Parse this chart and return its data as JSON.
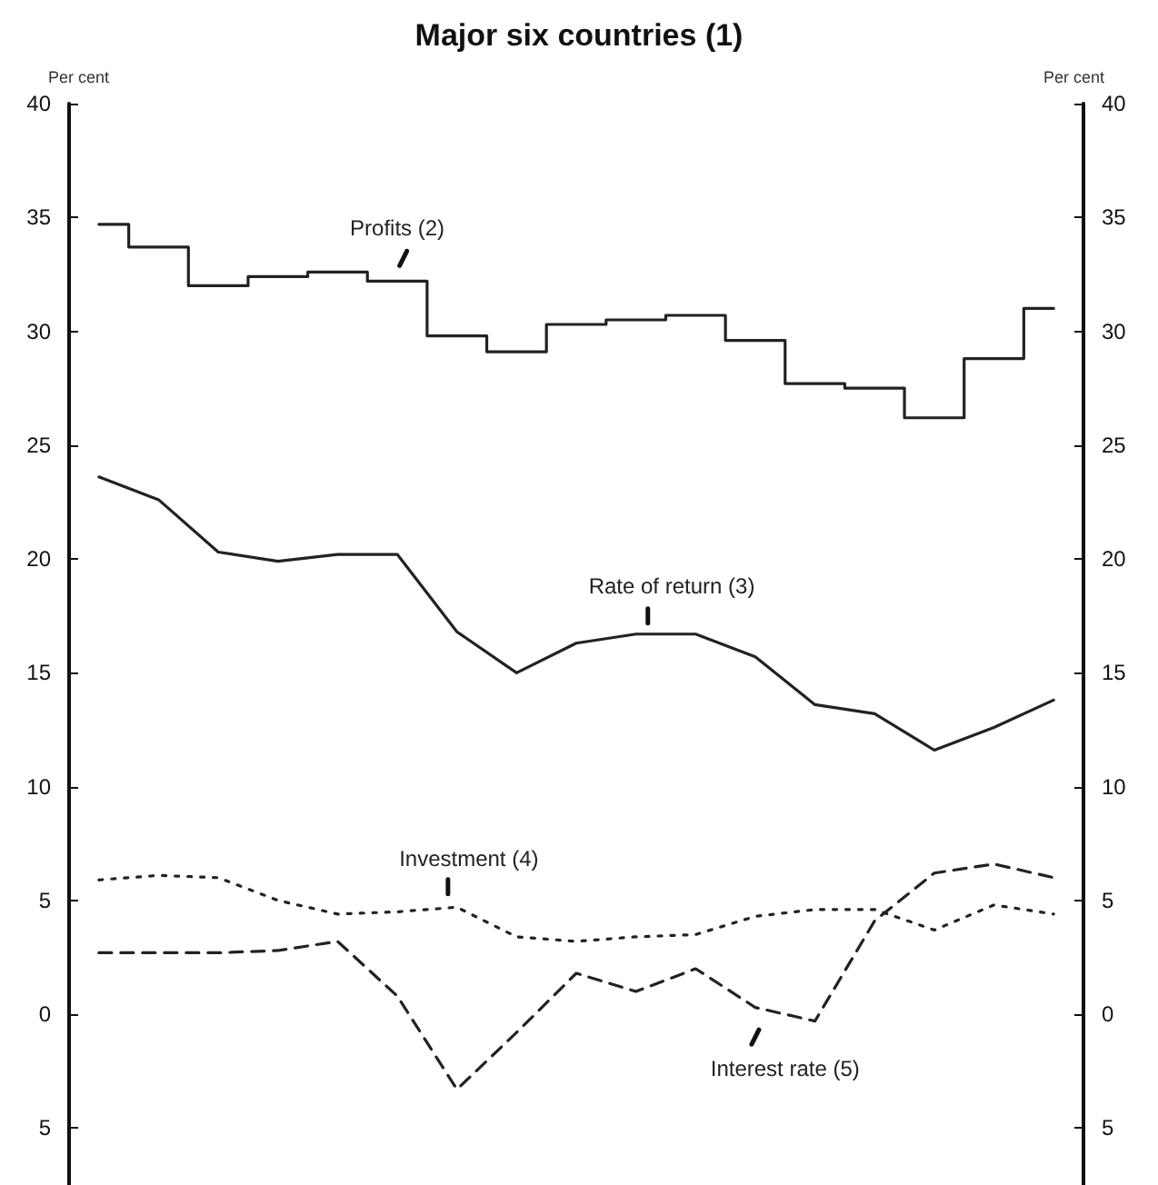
{
  "chart_data": {
    "type": "line",
    "title": "Major six countries (1)",
    "ylabel": "Per cent",
    "y2label": "Per cent",
    "categories": [
      null,
      null,
      null,
      null,
      null,
      null,
      null,
      null,
      null,
      null,
      null,
      null,
      null,
      null,
      null,
      null,
      null
    ],
    "series": [
      {
        "name": "Profits (2)",
        "type": "step",
        "color": "#222222",
        "line_style": "solid",
        "values": [
          34.7,
          33.7,
          32.0,
          32.4,
          32.6,
          32.2,
          29.8,
          29.1,
          30.3,
          30.5,
          30.7,
          29.6,
          27.7,
          27.5,
          26.2,
          28.8,
          31.0
        ]
      },
      {
        "name": "Rate of return (3)",
        "color": "#222222",
        "line_style": "solid",
        "values": [
          23.6,
          22.6,
          20.3,
          19.9,
          20.2,
          20.2,
          16.8,
          15.0,
          16.3,
          16.7,
          16.7,
          15.7,
          13.6,
          13.2,
          11.6,
          12.6,
          13.8
        ]
      },
      {
        "name": "Investment (4)",
        "color": "#222222",
        "line_style": "dotted",
        "values": [
          5.9,
          6.1,
          6.0,
          5.0,
          4.4,
          4.5,
          4.7,
          3.4,
          3.2,
          3.4,
          3.5,
          4.3,
          4.6,
          4.6,
          3.7,
          4.8,
          4.4
        ]
      },
      {
        "name": "Interest rate (5)",
        "color": "#222222",
        "line_style": "dashed",
        "values": [
          2.7,
          2.7,
          2.7,
          2.8,
          3.2,
          0.8,
          -3.3,
          -0.8,
          1.8,
          1.0,
          2.0,
          0.3,
          -0.3,
          4.1,
          6.2,
          6.6,
          6.0
        ]
      }
    ],
    "ylim": [
      -7.5,
      40
    ],
    "yticks": [
      {
        "value": -5,
        "label": "5"
      },
      0,
      5,
      10,
      15,
      20,
      25,
      30,
      35,
      40
    ],
    "y2lim": [
      -7.5,
      40
    ],
    "y2ticks": [
      {
        "value": -5,
        "label": "5"
      },
      0,
      5,
      10,
      15,
      20,
      25,
      30,
      35,
      40
    ],
    "tick_labels": "y",
    "grid": false,
    "legend": false,
    "marker": "none"
  }
}
